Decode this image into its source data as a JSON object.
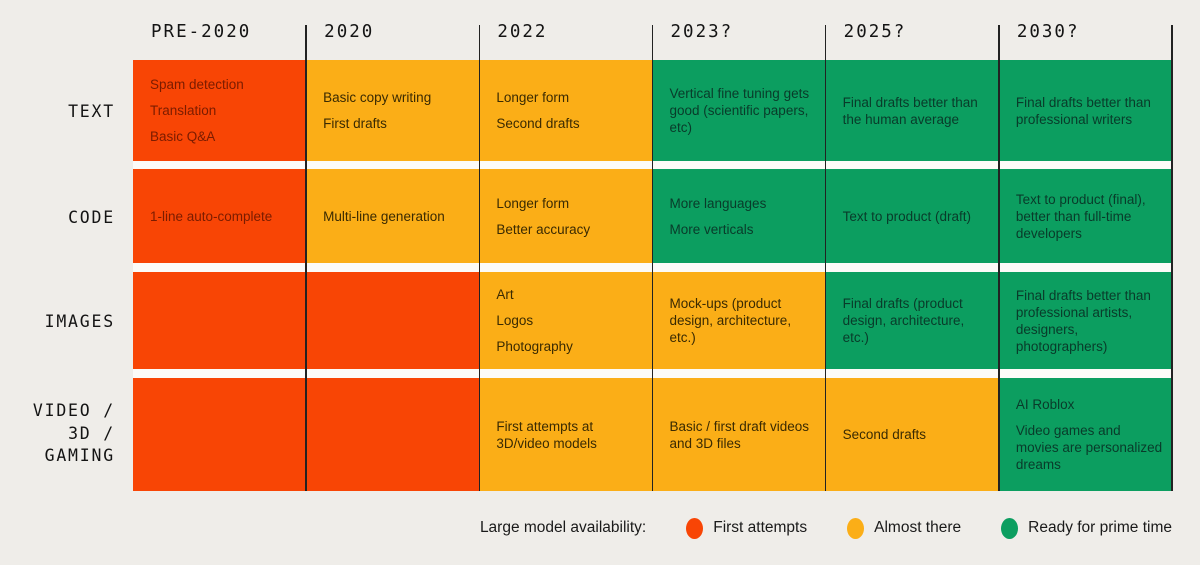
{
  "page": {
    "background": "#efede9"
  },
  "colors": {
    "first_attempts": "#f84505",
    "almost_there": "#fbae17",
    "ready_for_prime_time": "#0c9e60",
    "row_gap_white": "#fcfbf8",
    "grid_line": "#222222",
    "text_on_first_attempts": "#7a1c00",
    "text_on_almost_there": "#3a2a02",
    "text_on_ready_for_prime_time": "#093b2a",
    "heading_text": "#141414",
    "legend_text": "#1a1a1a"
  },
  "chart_data": {
    "type": "table",
    "title": "",
    "columns": [
      "PRE-2020",
      "2020",
      "2022",
      "2023?",
      "2025?",
      "2030?"
    ],
    "row_labels": [
      "TEXT",
      "CODE",
      "IMAGES",
      "VIDEO / 3D / GAMING"
    ],
    "rows": [
      {
        "label_lines": [
          "TEXT"
        ],
        "cells": [
          {
            "status": "first_attempts",
            "items": [
              "Spam detection",
              "Translation",
              "Basic Q&A"
            ]
          },
          {
            "status": "almost_there",
            "items": [
              "Basic copy writing",
              "First drafts"
            ]
          },
          {
            "status": "almost_there",
            "items": [
              "Longer form",
              "Second drafts"
            ]
          },
          {
            "status": "ready_for_prime_time",
            "items": [
              "Vertical fine tuning gets good (scientific papers, etc)"
            ]
          },
          {
            "status": "ready_for_prime_time",
            "items": [
              "Final drafts better than the human average"
            ]
          },
          {
            "status": "ready_for_prime_time",
            "items": [
              "Final drafts better than professional writers"
            ]
          }
        ]
      },
      {
        "label_lines": [
          "CODE"
        ],
        "cells": [
          {
            "status": "first_attempts",
            "items": [
              "1-line auto-complete"
            ]
          },
          {
            "status": "almost_there",
            "items": [
              "Multi-line generation"
            ]
          },
          {
            "status": "almost_there",
            "items": [
              "Longer form",
              "Better accuracy"
            ]
          },
          {
            "status": "ready_for_prime_time",
            "items": [
              "More languages",
              "More verticals"
            ]
          },
          {
            "status": "ready_for_prime_time",
            "items": [
              "Text to product (draft)"
            ]
          },
          {
            "status": "ready_for_prime_time",
            "items": [
              "Text to product (final), better than full-time developers"
            ]
          }
        ]
      },
      {
        "label_lines": [
          "IMAGES"
        ],
        "cells": [
          {
            "status": "first_attempts",
            "items": []
          },
          {
            "status": "first_attempts",
            "items": []
          },
          {
            "status": "almost_there",
            "items": [
              "Art",
              "Logos",
              "Photography"
            ]
          },
          {
            "status": "almost_there",
            "items": [
              "Mock-ups (product design, architecture, etc.)"
            ]
          },
          {
            "status": "ready_for_prime_time",
            "items": [
              "Final drafts (product design, architecture, etc.)"
            ]
          },
          {
            "status": "ready_for_prime_time",
            "items": [
              "Final drafts better than professional artists, designers, photographers)"
            ]
          }
        ]
      },
      {
        "label_lines": [
          "VIDEO /",
          "3D /",
          "GAMING"
        ],
        "cells": [
          {
            "status": "first_attempts",
            "items": []
          },
          {
            "status": "first_attempts",
            "items": []
          },
          {
            "status": "almost_there",
            "items": [
              "First attempts at 3D/video models"
            ]
          },
          {
            "status": "almost_there",
            "items": [
              "Basic / first draft videos and 3D files"
            ]
          },
          {
            "status": "almost_there",
            "items": [
              "Second drafts"
            ]
          },
          {
            "status": "ready_for_prime_time",
            "items": [
              "AI Roblox",
              "Video games and movies are personalized dreams"
            ]
          }
        ]
      }
    ],
    "legend": {
      "title": "Large model availability:",
      "entries": [
        {
          "label": "First attempts",
          "status": "first_attempts"
        },
        {
          "label": "Almost there",
          "status": "almost_there"
        },
        {
          "label": "Ready for prime time",
          "status": "ready_for_prime_time"
        }
      ]
    }
  }
}
